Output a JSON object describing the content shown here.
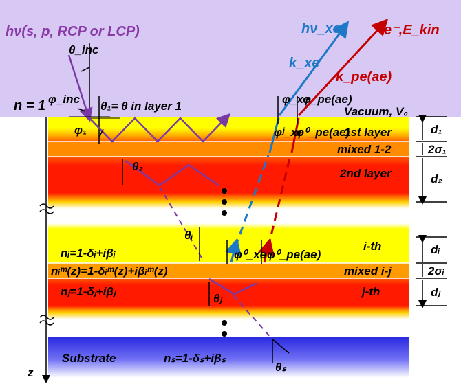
{
  "incident": {
    "title": "hν(s, p, RCP or LCP)",
    "theta_inc": "θ_inc",
    "phi_inc": "φ_inc",
    "n_label": "n = 1",
    "theta1": "θ₁= θ in layer 1",
    "phi1": "φ₁",
    "theta2": "θ₂",
    "thetai": "θᵢ",
    "thetaj": "θⱼ",
    "thetas": "θₛ"
  },
  "emission": {
    "xray": "hν_xe",
    "k_xe": "k_xe",
    "electron": "e⁻,E_kin",
    "k_pe": "k_pe(ae)",
    "phi_xe": "φ_xe",
    "phi_pe": "φ_pe(ae)",
    "vacuum": "Vacuum, V₀",
    "phi_xe_j": "φʲ_xe",
    "phi_pe_0": "φ⁰_pe(ae)",
    "phi_xe_0": "φ⁰_xe",
    "phi_pe_0b": "φ⁰_pe(ae)"
  },
  "layers": {
    "first": "1st layer",
    "mixed12": "mixed 1-2",
    "second": "2nd layer",
    "ith": "i-th",
    "mixedij": "mixed i-j",
    "jth": "j-th",
    "substrate": "Substrate"
  },
  "equations": {
    "ni": "nᵢ=1-δᵢ+iβᵢ",
    "nim": "nᵢᵐ(z)=1-δᵢᵐ(z)+iβᵢᵐ(z)",
    "nj": "nⱼ=1-δⱼ+iβⱼ",
    "ns": "nₛ=1-δₛ+iβₛ"
  },
  "thickness": {
    "d1": "d₁",
    "s1": "2σ₁",
    "d2": "d₂",
    "di": "dᵢ",
    "si": "2σᵢ",
    "dj": "dⱼ"
  },
  "axis": {
    "z": "z"
  },
  "colors": {
    "vacuum_bg": "#d8c8f4",
    "yellow": "#ffff00",
    "red": "#ff1a00",
    "orange": "#ffa000",
    "blue_sub": "#3a3ae8",
    "purple_ray": "#7a3aa6",
    "xray_blue": "#1e78c8",
    "electron_red": "#c40000"
  }
}
